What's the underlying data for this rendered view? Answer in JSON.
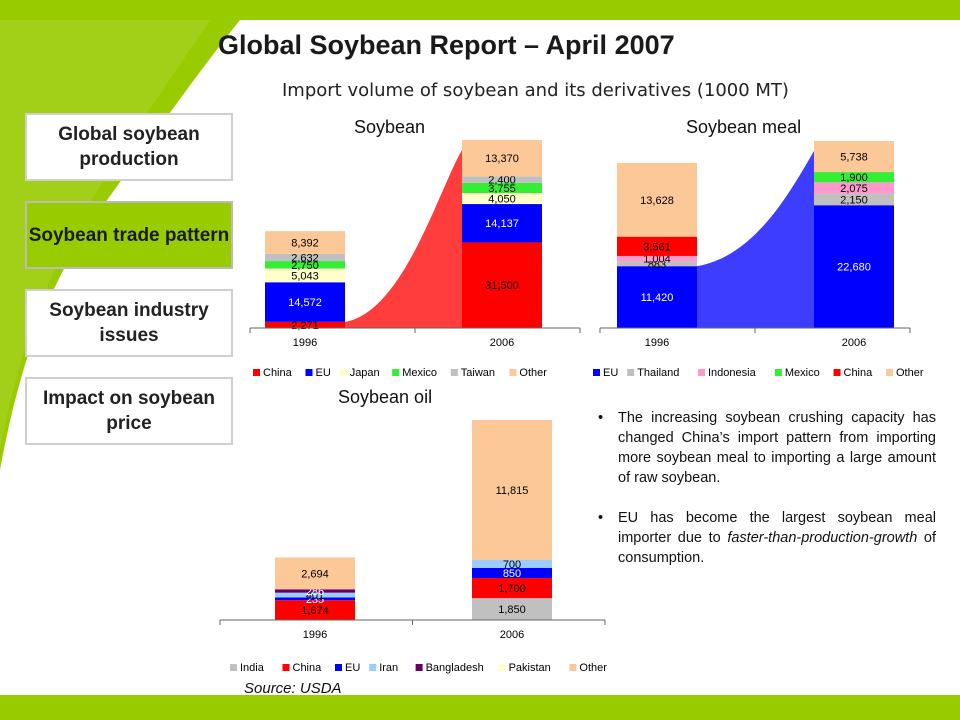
{
  "header": {
    "title": "Global Soybean Report – April 2007",
    "subtitle": "Import volume of soybean and its derivatives (1000 MT)"
  },
  "nav": [
    {
      "label": "Global soybean production",
      "active": false
    },
    {
      "label": "Soybean trade pattern",
      "active": true
    },
    {
      "label": "Soybean industry issues",
      "active": false
    },
    {
      "label": "Impact on soybean price",
      "active": false
    }
  ],
  "colors": {
    "accent": "#99cc00"
  },
  "bullets": [
    {
      "text": "The increasing soybean crushing capacity has changed China’s import pattern from importing more soybean meal to importing a large amount of raw soybean.",
      "italic": ""
    },
    {
      "text": "EU has become the largest soybean meal importer due to ",
      "italic": "faster-than-production-growth",
      "tail": " of consumption."
    }
  ],
  "source": "Source: USDA",
  "chart_data": [
    {
      "type": "bar",
      "stacked": true,
      "title": "Soybean",
      "categories": [
        "1996",
        "2006"
      ],
      "series": [
        {
          "name": "China",
          "color": "#ff0000",
          "values": [
            2271,
            31500
          ],
          "labels": [
            "2,271",
            "31,500"
          ]
        },
        {
          "name": "EU",
          "color": "#0000ff",
          "values": [
            14572,
            14137
          ],
          "labels": [
            "14,572",
            "14,137"
          ]
        },
        {
          "name": "Japan",
          "color": "#ffffcc",
          "values": [
            5043,
            4050
          ],
          "labels": [
            "5,043",
            "4,050"
          ]
        },
        {
          "name": "Mexico",
          "color": "#33ee33",
          "values": [
            2750,
            3755
          ],
          "labels": [
            "2,750",
            "3,755"
          ]
        },
        {
          "name": "Taiwan",
          "color": "#c0c0c0",
          "values": [
            2632,
            2400
          ],
          "labels": [
            "2,632",
            "2,400"
          ]
        },
        {
          "name": "Other",
          "color": "#fcc898",
          "values": [
            8392,
            13370
          ],
          "labels": [
            "8,392",
            "13,370"
          ]
        }
      ],
      "trend_color": "#ff3333",
      "grid": false,
      "legend": "bottom"
    },
    {
      "type": "bar",
      "stacked": true,
      "title": "Soybean meal",
      "categories": [
        "1996",
        "2006"
      ],
      "series": [
        {
          "name": "EU",
          "color": "#0000ff",
          "values": [
            11420,
            22680
          ],
          "labels": [
            "11,420",
            "22,680"
          ]
        },
        {
          "name": "Thailand",
          "color": "#c0c0c0",
          "values": [
            883,
            2150
          ],
          "labels": [
            "883",
            "2,150"
          ]
        },
        {
          "name": "Indonesia",
          "color": "#ff99cc",
          "values": [
            1004,
            2075
          ],
          "labels": [
            "1,004",
            "2,075"
          ]
        },
        {
          "name": "Mexico",
          "color": "#33ee33",
          "values": [
            0,
            1900
          ],
          "labels": [
            "",
            "1,900"
          ]
        },
        {
          "name": "China",
          "color": "#ff0000",
          "values": [
            3561,
            0
          ],
          "labels": [
            "3,561",
            ""
          ]
        },
        {
          "name": "Other",
          "color": "#fcc898",
          "values": [
            13628,
            5738
          ],
          "labels": [
            "13,628",
            "5,738"
          ]
        }
      ],
      "trend_color": "#3333ff",
      "grid": false,
      "legend": "bottom"
    },
    {
      "type": "bar",
      "stacked": true,
      "title": "Soybean oil",
      "categories": [
        "1996",
        "2006"
      ],
      "series": [
        {
          "name": "India",
          "color": "#c0c0c0",
          "values": [
            0,
            1850
          ],
          "labels": [
            "",
            "1,850"
          ]
        },
        {
          "name": "China",
          "color": "#ff0000",
          "values": [
            1674,
            1700
          ],
          "labels": [
            "1,674",
            "1,700"
          ]
        },
        {
          "name": "EU",
          "color": "#0000ff",
          "values": [
            235,
            850
          ],
          "labels": [
            "235",
            "850"
          ]
        },
        {
          "name": "Iran",
          "color": "#99ccff",
          "values": [
            401,
            700
          ],
          "labels": [
            "401",
            "700"
          ]
        },
        {
          "name": "Bangladesh",
          "color": "#660066",
          "values": [
            286,
            0
          ],
          "labels": [
            "286",
            ""
          ]
        },
        {
          "name": "Pakistan",
          "color": "#ffffcc",
          "values": [
            0,
            0
          ],
          "labels": [
            "",
            ""
          ]
        },
        {
          "name": "Other",
          "color": "#fcc898",
          "values": [
            2694,
            11815
          ],
          "labels": [
            "2,694",
            "11,815"
          ]
        }
      ],
      "grid": false,
      "legend": "bottom"
    }
  ]
}
